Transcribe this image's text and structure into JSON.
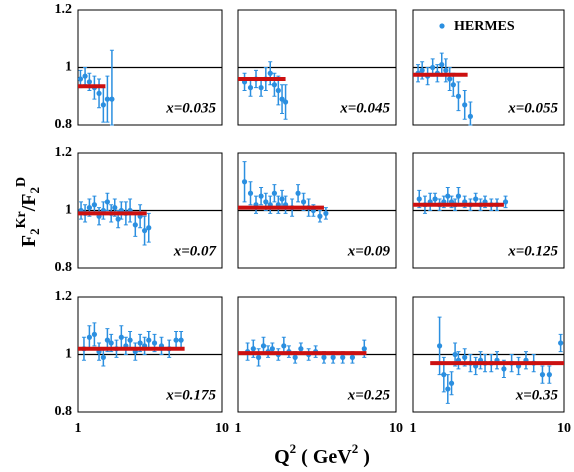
{
  "y_label": [
    "F",
    "2",
    "Kr",
    "/F",
    "2",
    "D"
  ],
  "x_label": [
    "Q",
    "2",
    " ( GeV",
    "2",
    " )"
  ],
  "chart_data": [
    {
      "type": "scatter",
      "annotation": "x=0.035",
      "xlim": [
        1,
        10
      ],
      "ylim": [
        0.8,
        1.2
      ],
      "log_x": true,
      "xticks": [
        1,
        10
      ],
      "yticks": [
        0.8,
        1,
        1.2
      ],
      "hline": 1,
      "x": [
        1.04,
        1.12,
        1.2,
        1.3,
        1.4,
        1.5,
        1.6,
        1.72
      ],
      "series": [
        {
          "color": "#2b8fe0",
          "values": [
            0.96,
            0.97,
            0.95,
            0.93,
            0.91,
            0.87,
            0.89,
            0.89
          ],
          "errors": [
            0.03,
            0.03,
            0.03,
            0.04,
            0.05,
            0.06,
            0.08,
            0.17
          ]
        }
      ],
      "fit": {
        "value": 0.935,
        "xrange": [
          1,
          1.55
        ],
        "color": "#cc1010"
      }
    },
    {
      "type": "scatter",
      "annotation": "x=0.045",
      "xlim": [
        1,
        10
      ],
      "ylim": [
        0.8,
        1.2
      ],
      "log_x": true,
      "xticks": [
        1,
        10
      ],
      "yticks": [
        0.8,
        1,
        1.2
      ],
      "hline": 1,
      "x": [
        1.1,
        1.2,
        1.3,
        1.4,
        1.5,
        1.6,
        1.7,
        1.8,
        1.9,
        2.0
      ],
      "series": [
        {
          "color": "#2b8fe0",
          "values": [
            0.95,
            0.93,
            0.96,
            0.93,
            0.96,
            0.98,
            0.94,
            0.92,
            0.89,
            0.88
          ],
          "errors": [
            0.03,
            0.03,
            0.03,
            0.03,
            0.04,
            0.04,
            0.04,
            0.05,
            0.05,
            0.06
          ]
        }
      ],
      "fit": {
        "value": 0.96,
        "xrange": [
          1,
          2.0
        ],
        "color": "#cc1010"
      }
    },
    {
      "type": "scatter",
      "annotation": "x=0.055",
      "xlim": [
        1,
        10
      ],
      "ylim": [
        0.8,
        1.2
      ],
      "log_x": true,
      "xticks": [
        1,
        10
      ],
      "yticks": [
        0.8,
        1,
        1.2
      ],
      "hline": 1,
      "legend": "upper right",
      "x": [
        1.08,
        1.15,
        1.25,
        1.35,
        1.45,
        1.55,
        1.65,
        1.75,
        1.85,
        2.0,
        2.2,
        2.4
      ],
      "series": [
        {
          "name": "HERMES",
          "color": "#2b8fe0",
          "values": [
            0.98,
            0.99,
            0.97,
            1.0,
            0.98,
            1.01,
            0.99,
            0.96,
            0.94,
            0.9,
            0.87,
            0.83
          ],
          "errors": [
            0.03,
            0.03,
            0.03,
            0.03,
            0.03,
            0.04,
            0.04,
            0.04,
            0.04,
            0.05,
            0.05,
            0.05
          ]
        }
      ],
      "fit": {
        "value": 0.975,
        "xrange": [
          1,
          2.3
        ],
        "color": "#cc1010"
      }
    },
    {
      "type": "scatter",
      "annotation": "x=0.07",
      "xlim": [
        1,
        10
      ],
      "ylim": [
        0.8,
        1.2
      ],
      "log_x": true,
      "xticks": [
        1,
        10
      ],
      "yticks": [
        0.8,
        1,
        1.2
      ],
      "hline": 1,
      "x": [
        1.05,
        1.12,
        1.2,
        1.3,
        1.4,
        1.5,
        1.6,
        1.7,
        1.8,
        1.9,
        2.0,
        2.15,
        2.3,
        2.5,
        2.7,
        2.9,
        3.1
      ],
      "series": [
        {
          "color": "#2b8fe0",
          "values": [
            1.0,
            0.99,
            1.01,
            1.02,
            0.98,
            1.0,
            1.03,
            0.99,
            1.01,
            0.97,
            1.0,
            0.99,
            1.0,
            0.95,
            0.98,
            0.93,
            0.94
          ],
          "errors": [
            0.03,
            0.03,
            0.03,
            0.03,
            0.03,
            0.03,
            0.03,
            0.03,
            0.03,
            0.03,
            0.03,
            0.04,
            0.04,
            0.04,
            0.04,
            0.05,
            0.05
          ]
        }
      ],
      "fit": {
        "value": 0.99,
        "xrange": [
          1,
          3
        ],
        "color": "#cc1010"
      }
    },
    {
      "type": "scatter",
      "annotation": "x=0.09",
      "xlim": [
        1,
        10
      ],
      "ylim": [
        0.8,
        1.2
      ],
      "log_x": true,
      "xticks": [
        1,
        10
      ],
      "yticks": [
        0.8,
        1,
        1.2
      ],
      "hline": 1,
      "x": [
        1.1,
        1.2,
        1.3,
        1.4,
        1.5,
        1.6,
        1.7,
        1.8,
        1.9,
        2.0,
        2.2,
        2.4,
        2.6,
        2.8,
        3.0,
        3.3,
        3.6
      ],
      "series": [
        {
          "color": "#2b8fe0",
          "values": [
            1.1,
            1.06,
            1.02,
            1.05,
            1.03,
            1.02,
            1.06,
            1.02,
            1.04,
            1.02,
            1.01,
            1.06,
            1.03,
            1.01,
            1.0,
            0.98,
            0.99
          ],
          "errors": [
            0.07,
            0.04,
            0.03,
            0.03,
            0.03,
            0.03,
            0.03,
            0.03,
            0.03,
            0.03,
            0.03,
            0.03,
            0.03,
            0.03,
            0.02,
            0.02,
            0.02
          ]
        }
      ],
      "fit": {
        "value": 1.01,
        "xrange": [
          1,
          3.5
        ],
        "color": "#cc1010"
      }
    },
    {
      "type": "scatter",
      "annotation": "x=0.125",
      "xlim": [
        1,
        10
      ],
      "ylim": [
        0.8,
        1.2
      ],
      "log_x": true,
      "xticks": [
        1,
        10
      ],
      "yticks": [
        0.8,
        1,
        1.2
      ],
      "hline": 1,
      "x": [
        1.1,
        1.2,
        1.3,
        1.4,
        1.5,
        1.6,
        1.7,
        1.8,
        1.9,
        2.0,
        2.2,
        2.4,
        2.6,
        2.8,
        3.0,
        3.3,
        3.6,
        4.1
      ],
      "series": [
        {
          "color": "#2b8fe0",
          "values": [
            1.04,
            1.02,
            1.03,
            1.04,
            1.02,
            1.03,
            1.05,
            1.03,
            1.02,
            1.05,
            1.03,
            1.02,
            1.04,
            1.02,
            1.03,
            1.02,
            1.02,
            1.03
          ],
          "errors": [
            0.03,
            0.03,
            0.03,
            0.02,
            0.02,
            0.02,
            0.03,
            0.02,
            0.02,
            0.03,
            0.02,
            0.02,
            0.02,
            0.02,
            0.02,
            0.02,
            0.02,
            0.02
          ]
        }
      ],
      "fit": {
        "value": 1.02,
        "xrange": [
          1,
          4
        ],
        "color": "#cc1010"
      }
    },
    {
      "type": "scatter",
      "annotation": "x=0.175",
      "xlim": [
        1,
        10
      ],
      "ylim": [
        0.8,
        1.2
      ],
      "log_x": true,
      "xticks": [
        1,
        10
      ],
      "yticks": [
        0.8,
        1,
        1.2
      ],
      "hline": 1,
      "x": [
        1.1,
        1.2,
        1.3,
        1.4,
        1.5,
        1.6,
        1.7,
        1.85,
        2.0,
        2.15,
        2.3,
        2.5,
        2.7,
        2.9,
        3.1,
        3.4,
        3.8,
        4.3,
        4.8,
        5.2
      ],
      "series": [
        {
          "color": "#2b8fe0",
          "values": [
            1.02,
            1.06,
            1.07,
            1.01,
            0.99,
            1.05,
            1.04,
            1.02,
            1.06,
            1.03,
            1.05,
            1.01,
            1.04,
            1.03,
            1.05,
            1.04,
            1.03,
            1.02,
            1.05,
            1.05
          ],
          "errors": [
            0.04,
            0.04,
            0.04,
            0.03,
            0.03,
            0.04,
            0.03,
            0.03,
            0.04,
            0.03,
            0.03,
            0.03,
            0.03,
            0.03,
            0.03,
            0.03,
            0.03,
            0.03,
            0.03,
            0.03
          ]
        }
      ],
      "fit": {
        "value": 1.02,
        "xrange": [
          1,
          5.5
        ],
        "color": "#cc1010"
      }
    },
    {
      "type": "scatter",
      "annotation": "x=0.25",
      "xlim": [
        1,
        10
      ],
      "ylim": [
        0.8,
        1.2
      ],
      "log_x": true,
      "xticks": [
        1,
        10
      ],
      "yticks": [
        0.8,
        1,
        1.2
      ],
      "hline": 1,
      "x": [
        1.15,
        1.25,
        1.35,
        1.45,
        1.55,
        1.65,
        1.8,
        1.95,
        2.1,
        2.3,
        2.5,
        2.8,
        3.1,
        3.5,
        4.0,
        4.6,
        5.3,
        6.3
      ],
      "series": [
        {
          "color": "#2b8fe0",
          "values": [
            1.01,
            1.02,
            0.99,
            1.03,
            1.01,
            1.02,
            1.0,
            1.03,
            1.01,
            0.99,
            1.02,
            1.0,
            1.01,
            0.99,
            0.99,
            0.99,
            0.99,
            1.02
          ],
          "errors": [
            0.03,
            0.03,
            0.03,
            0.03,
            0.02,
            0.02,
            0.02,
            0.03,
            0.02,
            0.02,
            0.02,
            0.02,
            0.02,
            0.02,
            0.02,
            0.02,
            0.02,
            0.03
          ]
        }
      ],
      "fit": {
        "value": 1.005,
        "xrange": [
          1,
          6.5
        ],
        "color": "#cc1010"
      }
    },
    {
      "type": "scatter",
      "annotation": "x=0.35",
      "xlim": [
        1,
        10
      ],
      "ylim": [
        0.8,
        1.2
      ],
      "log_x": true,
      "xticks": [
        1,
        10
      ],
      "yticks": [
        0.8,
        1,
        1.2
      ],
      "hline": 1,
      "x": [
        1.5,
        1.6,
        1.7,
        1.8,
        1.9,
        2.0,
        2.2,
        2.4,
        2.6,
        2.8,
        3.0,
        3.3,
        3.6,
        4.0,
        4.5,
        5.0,
        5.6,
        6.3,
        7.2,
        8.0,
        9.5
      ],
      "series": [
        {
          "color": "#2b8fe0",
          "values": [
            1.03,
            0.93,
            0.88,
            0.9,
            1.0,
            0.98,
            0.99,
            0.97,
            0.96,
            0.98,
            0.97,
            0.97,
            0.98,
            0.95,
            0.97,
            0.96,
            0.98,
            0.97,
            0.93,
            0.93,
            1.04
          ],
          "errors": [
            0.1,
            0.06,
            0.05,
            0.04,
            0.04,
            0.03,
            0.03,
            0.03,
            0.03,
            0.03,
            0.03,
            0.03,
            0.03,
            0.03,
            0.03,
            0.03,
            0.03,
            0.03,
            0.03,
            0.03,
            0.03
          ]
        }
      ],
      "fit": {
        "value": 0.97,
        "xrange": [
          1.3,
          10
        ],
        "color": "#cc1010"
      }
    }
  ]
}
